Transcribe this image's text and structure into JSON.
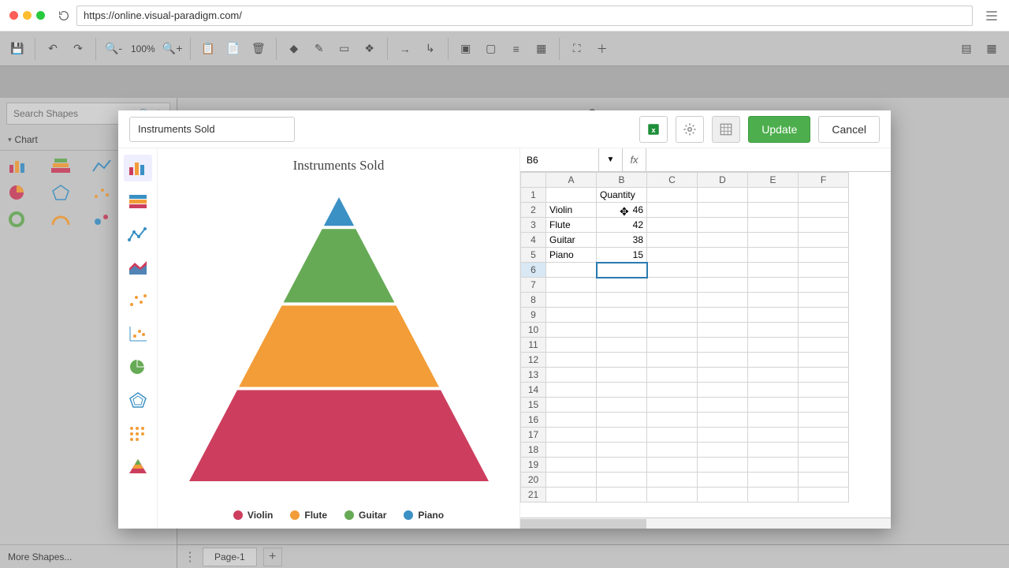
{
  "browser": {
    "url": "https://online.visual-paradigm.com/"
  },
  "toolbar": {
    "zoom": "100%"
  },
  "left_panel": {
    "search_placeholder": "Search Shapes",
    "section": "Chart",
    "more": "More Shapes..."
  },
  "page_tabs": {
    "first": "Page-1"
  },
  "modal": {
    "title": "Instruments Sold",
    "update": "Update",
    "cancel": "Cancel"
  },
  "chart": {
    "type": "pyramid",
    "title": "Instruments Sold",
    "title_fontsize": 17,
    "background": "#ffffff",
    "series": [
      {
        "label": "Violin",
        "value": 46,
        "color": "#cd3e5e"
      },
      {
        "label": "Flute",
        "value": 42,
        "color": "#f29d38"
      },
      {
        "label": "Guitar",
        "value": 38,
        "color": "#66aa55"
      },
      {
        "label": "Piano",
        "value": 15,
        "color": "#3b90c4"
      }
    ],
    "gap": 4
  },
  "spreadsheet": {
    "active_cell": "B6",
    "fx_label": "fx",
    "columns": [
      "A",
      "B",
      "C",
      "D",
      "E",
      "F"
    ],
    "header_row": {
      "B": "Quantity"
    },
    "rows": [
      {
        "A": "Violin",
        "B": 46
      },
      {
        "A": "Flute",
        "B": 42
      },
      {
        "A": "Guitar",
        "B": 38
      },
      {
        "A": "Piano",
        "B": 15
      }
    ],
    "visible_rows": 21
  },
  "chart_type_strip": [
    "bar",
    "stacked-bar",
    "line",
    "area",
    "scatter",
    "scatter-axis",
    "pie",
    "radar",
    "matrix",
    "pyramid"
  ]
}
